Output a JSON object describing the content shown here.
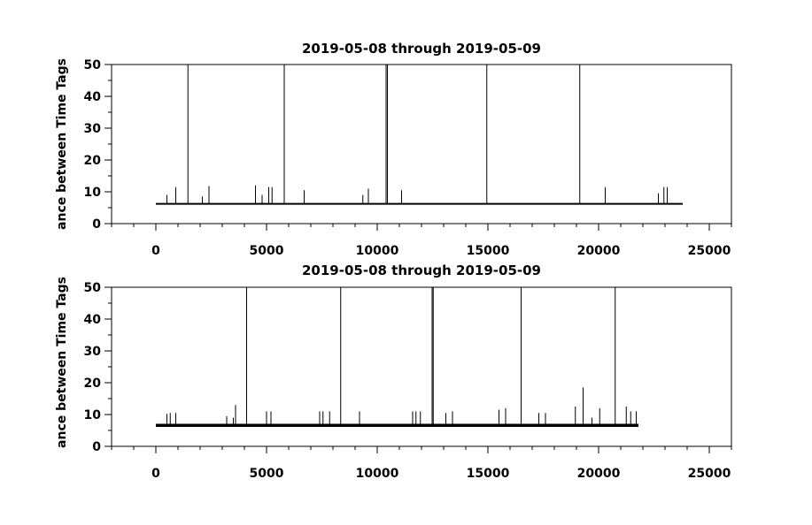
{
  "figure": {
    "background": "#ffffff",
    "line_color": "#000000"
  },
  "chart_data": [
    {
      "type": "line",
      "title": "2019-05-08 through 2019-05-09",
      "xlabel": "",
      "ylabel": "ance between Time Tags",
      "xlim": [
        -2000,
        26000
      ],
      "ylim": [
        0,
        50
      ],
      "xticks": [
        0,
        5000,
        10000,
        15000,
        20000,
        25000
      ],
      "yticks": [
        0,
        10,
        20,
        30,
        40,
        50
      ],
      "grid": false,
      "series": [
        {
          "baseline": 6.2,
          "x_range": [
            0,
            23800
          ],
          "spikes": [
            {
              "x": 500,
              "y": 9
            },
            {
              "x": 900,
              "y": 11.5
            },
            {
              "x": 1450,
              "y": 50
            },
            {
              "x": 2100,
              "y": 8.5
            },
            {
              "x": 2400,
              "y": 11.8
            },
            {
              "x": 4500,
              "y": 12
            },
            {
              "x": 4800,
              "y": 9
            },
            {
              "x": 5100,
              "y": 11.5
            },
            {
              "x": 5250,
              "y": 11.5
            },
            {
              "x": 5800,
              "y": 50
            },
            {
              "x": 6700,
              "y": 10.5
            },
            {
              "x": 9350,
              "y": 9
            },
            {
              "x": 9600,
              "y": 11
            },
            {
              "x": 10400,
              "y": 50
            },
            {
              "x": 10460,
              "y": 50
            },
            {
              "x": 11100,
              "y": 10.5
            },
            {
              "x": 14950,
              "y": 50
            },
            {
              "x": 19150,
              "y": 50
            },
            {
              "x": 20300,
              "y": 11.5
            },
            {
              "x": 22700,
              "y": 9.5
            },
            {
              "x": 22950,
              "y": 11.5
            },
            {
              "x": 23100,
              "y": 11.5
            }
          ]
        }
      ]
    },
    {
      "type": "line",
      "title": "2019-05-08 through 2019-05-09",
      "xlabel": "",
      "ylabel": "ance between Time Tags",
      "xlim": [
        -2000,
        26000
      ],
      "ylim": [
        0,
        50
      ],
      "xticks": [
        0,
        5000,
        10000,
        15000,
        20000,
        25000
      ],
      "yticks": [
        0,
        10,
        20,
        30,
        40,
        50
      ],
      "grid": false,
      "series": [
        {
          "baseline": 6.6,
          "x_range": [
            0,
            21800
          ],
          "spikes": [
            {
              "x": 500,
              "y": 10.2
            },
            {
              "x": 650,
              "y": 10.5
            },
            {
              "x": 900,
              "y": 10.5
            },
            {
              "x": 3200,
              "y": 9.5
            },
            {
              "x": 3500,
              "y": 9
            },
            {
              "x": 3600,
              "y": 13
            },
            {
              "x": 4100,
              "y": 50
            },
            {
              "x": 5000,
              "y": 11
            },
            {
              "x": 5200,
              "y": 11
            },
            {
              "x": 7400,
              "y": 11
            },
            {
              "x": 7550,
              "y": 11
            },
            {
              "x": 7850,
              "y": 11
            },
            {
              "x": 8350,
              "y": 50
            },
            {
              "x": 9200,
              "y": 11
            },
            {
              "x": 11600,
              "y": 11
            },
            {
              "x": 11750,
              "y": 11
            },
            {
              "x": 11950,
              "y": 11
            },
            {
              "x": 12480,
              "y": 50
            },
            {
              "x": 12530,
              "y": 50
            },
            {
              "x": 13100,
              "y": 10.5
            },
            {
              "x": 13400,
              "y": 11
            },
            {
              "x": 15500,
              "y": 11.5
            },
            {
              "x": 15800,
              "y": 12
            },
            {
              "x": 16500,
              "y": 50
            },
            {
              "x": 17300,
              "y": 10.5
            },
            {
              "x": 17600,
              "y": 10.5
            },
            {
              "x": 18950,
              "y": 12.5
            },
            {
              "x": 19300,
              "y": 18.5
            },
            {
              "x": 19700,
              "y": 9
            },
            {
              "x": 20050,
              "y": 12
            },
            {
              "x": 20750,
              "y": 50
            },
            {
              "x": 21250,
              "y": 12.5
            },
            {
              "x": 21450,
              "y": 11
            },
            {
              "x": 21700,
              "y": 11
            }
          ]
        }
      ]
    }
  ]
}
